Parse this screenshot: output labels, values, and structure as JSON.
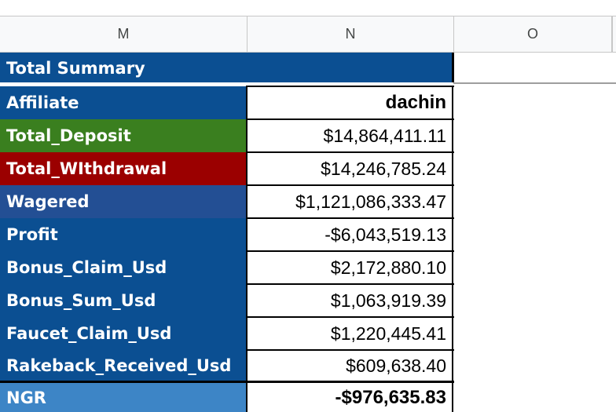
{
  "columns": [
    "M",
    "N",
    "O"
  ],
  "summary_title": "Total Summary",
  "rows": [
    {
      "label": "Affiliate",
      "value": "dachin",
      "bold": true
    },
    {
      "label": "Total_Deposit",
      "value": "$14,864,411.11"
    },
    {
      "label": "Total_WIthdrawal",
      "value": "$14,246,785.24"
    },
    {
      "label": "Wagered",
      "value": "$1,121,086,333.47"
    },
    {
      "label": "Profit",
      "value": "-$6,043,519.13"
    },
    {
      "label": "Bonus_Claim_Usd",
      "value": "$2,172,880.10"
    },
    {
      "label": "Bonus_Sum_Usd",
      "value": "$1,063,919.39"
    },
    {
      "label": "Faucet_Claim_Usd",
      "value": "$1,220,445.41"
    },
    {
      "label": "Rakeback_Received_Usd",
      "value": "$609,638.40"
    },
    {
      "label": "NGR",
      "value": "-$976,635.83",
      "bold": true
    }
  ],
  "colors": {
    "dark_blue": "#0b4f92",
    "deposit_green": "#3a7f1f",
    "withdrawal_red": "#9b0000",
    "wagered_blue": "#234f94",
    "ngr_blue": "#3d85c6",
    "header_gray": "#f8f9fa"
  }
}
